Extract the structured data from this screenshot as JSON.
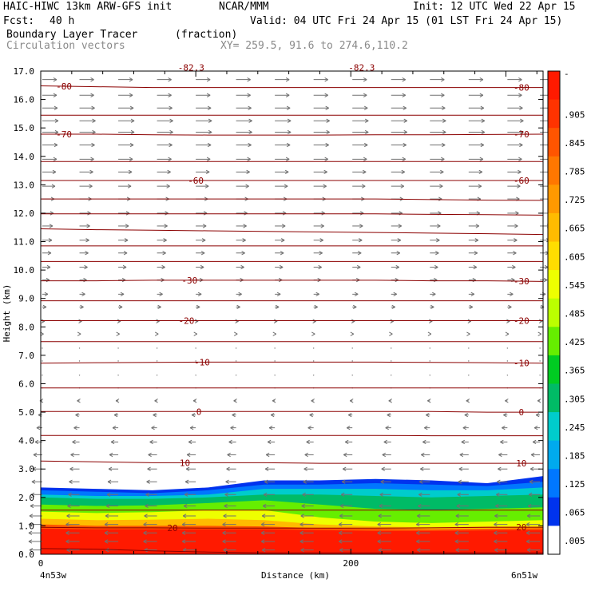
{
  "header": {
    "title_left": "HAIC-HIWC 13km ARW-GFS init",
    "org": "NCAR/MMM",
    "init": "Init: 12 UTC Wed 22 Apr 15",
    "fcst_label": "Fcst:",
    "fcst_value": "40 h",
    "valid": "Valid: 04 UTC Fri 24 Apr 15 (01 LST Fri 24 Apr 15)",
    "field_name": "Boundary Layer Tracer",
    "field_units": "(fraction)",
    "vector_label": "Circulation vectors",
    "xy_label": "XY= 259.5, 91.6 to 274.6,110.2"
  },
  "chart_data": {
    "type": "heatmap",
    "xlabel": "Distance (km)",
    "ylabel": "Height (km)",
    "xlim": [
      0,
      324
    ],
    "ylim": [
      0,
      17
    ],
    "x_ticks": [
      {
        "v": 0,
        "label": "0"
      },
      {
        "v": 200,
        "label": "200"
      }
    ],
    "y_ticks": [
      "0.0",
      "1.0",
      "2.0",
      "3.0",
      "4.0",
      "5.0",
      "6.0",
      "7.0",
      "8.0",
      "9.0",
      "10.0",
      "11.0",
      "12.0",
      "13.0",
      "14.0",
      "15.0",
      "16.0",
      "17.0"
    ],
    "endpoints": {
      "left": "4n53w",
      "right": "6n51w"
    },
    "colorbar": {
      "labels": [
        "-",
        ".905",
        ".845",
        ".785",
        ".725",
        ".665",
        ".605",
        ".545",
        ".485",
        ".425",
        ".365",
        ".305",
        ".245",
        ".185",
        ".125",
        ".065",
        ".005"
      ],
      "colors": [
        "#ff1a00",
        "#ff3300",
        "#ff5500",
        "#ff7700",
        "#ff9900",
        "#ffbb00",
        "#ffdd00",
        "#eeff00",
        "#bbff00",
        "#66ee00",
        "#00cc22",
        "#00bb66",
        "#00cccc",
        "#00aaee",
        "#0077ff",
        "#0033ee",
        "#ffffff"
      ]
    },
    "tracer_layers": [
      {
        "color": "#0033ee",
        "top": [
          2.35,
          2.3,
          2.25,
          2.35,
          2.6,
          2.6,
          2.65,
          2.6,
          2.5,
          2.75
        ]
      },
      {
        "color": "#0077ff",
        "top": [
          2.25,
          2.2,
          2.15,
          2.25,
          2.45,
          2.45,
          2.5,
          2.45,
          2.4,
          2.55
        ]
      },
      {
        "color": "#00cccc",
        "top": [
          2.1,
          2.05,
          2.05,
          2.1,
          2.3,
          2.3,
          2.3,
          2.25,
          2.25,
          2.35
        ]
      },
      {
        "color": "#00bb66",
        "top": [
          2.0,
          1.95,
          1.95,
          2.0,
          2.1,
          2.1,
          2.05,
          2.0,
          2.05,
          2.1
        ]
      },
      {
        "color": "#66ee00",
        "top": [
          1.75,
          1.7,
          1.72,
          1.8,
          1.9,
          1.75,
          1.6,
          1.55,
          1.6,
          1.65
        ]
      },
      {
        "color": "#eeff00",
        "top": [
          1.5,
          1.45,
          1.48,
          1.55,
          1.55,
          1.3,
          1.15,
          1.1,
          1.15,
          1.2
        ]
      },
      {
        "color": "#ffbb00",
        "top": [
          1.25,
          1.2,
          1.22,
          1.25,
          1.2,
          1.05,
          0.98,
          0.95,
          0.98,
          1.0
        ]
      },
      {
        "color": "#ff5500",
        "top": [
          1.05,
          1.0,
          1.0,
          1.0,
          0.98,
          0.92,
          0.9,
          0.88,
          0.9,
          0.92
        ]
      },
      {
        "color": "#ff1a00",
        "top": [
          0.9,
          0.88,
          0.88,
          0.88,
          0.88,
          0.85,
          0.82,
          0.82,
          0.84,
          0.85
        ]
      }
    ],
    "isotherms": [
      {
        "y": [
          0.2,
          0.18,
          0.12,
          0.08,
          0.05,
          0.05,
          0.05,
          0.05,
          0.05,
          0.05
        ]
      },
      {
        "y": [
          0.95,
          0.93,
          0.93,
          0.92,
          0.92,
          0.92,
          0.92,
          0.93,
          0.95,
          0.95
        ],
        "label": "20",
        "lx": 85
      },
      {
        "y": [
          1.55,
          1.55,
          1.55,
          1.55,
          1.55,
          1.55,
          1.55,
          1.55,
          1.55,
          1.55
        ]
      },
      {
        "y": [
          3.28,
          3.25,
          3.22,
          3.22,
          3.22,
          3.2,
          3.2,
          3.2,
          3.2,
          3.2
        ],
        "label": "10",
        "lx": 93
      },
      {
        "y": [
          4.18,
          4.18,
          4.18,
          4.18,
          4.18,
          4.18,
          4.18,
          4.17,
          4.17,
          4.17
        ]
      },
      {
        "y": [
          5.02,
          5.02,
          5.02,
          5.02,
          5.02,
          5.02,
          5.02,
          5.02,
          5.0,
          5.0
        ],
        "label": "0",
        "lx": 102
      },
      {
        "y": [
          5.85,
          5.85,
          5.85,
          5.85,
          5.85,
          5.85,
          5.85,
          5.85,
          5.85,
          5.85
        ]
      },
      {
        "y": [
          6.72,
          6.74,
          6.75,
          6.76,
          6.76,
          6.76,
          6.76,
          6.75,
          6.74,
          6.72
        ],
        "label": "-10",
        "lx": 104
      },
      {
        "y": [
          7.48,
          7.48,
          7.48,
          7.48,
          7.48,
          7.48,
          7.48,
          7.48,
          7.48,
          7.48
        ]
      },
      {
        "y": [
          8.22,
          8.22,
          8.22,
          8.22,
          8.22,
          8.22,
          8.22,
          8.22,
          8.22,
          8.22
        ],
        "label": "-20",
        "lx": 94
      },
      {
        "y": [
          8.92,
          8.92,
          8.92,
          8.92,
          8.92,
          8.92,
          8.92,
          8.92,
          8.92,
          8.92
        ]
      },
      {
        "y": [
          9.62,
          9.62,
          9.64,
          9.64,
          9.64,
          9.64,
          9.64,
          9.62,
          9.62,
          9.6
        ],
        "label": "-30",
        "lx": 96
      },
      {
        "y": [
          10.3,
          10.3,
          10.3,
          10.3,
          10.3,
          10.3,
          10.3,
          10.3,
          10.3,
          10.3
        ]
      },
      {
        "y": [
          10.85,
          10.85,
          10.85,
          10.85,
          10.85,
          10.85,
          10.85,
          10.85,
          10.85,
          10.85
        ]
      },
      {
        "y": [
          11.45,
          11.42,
          11.4,
          11.38,
          11.36,
          11.34,
          11.32,
          11.3,
          11.28,
          11.25
        ]
      },
      {
        "y": [
          11.98,
          11.98,
          11.98,
          11.98,
          11.98,
          11.98,
          11.98,
          11.96,
          11.95,
          11.93
        ]
      },
      {
        "y": [
          12.5,
          12.5,
          12.5,
          12.5,
          12.5,
          12.5,
          12.5,
          12.48,
          12.46,
          12.45
        ]
      },
      {
        "y": [
          13.15,
          13.15,
          13.15,
          13.15,
          13.15,
          13.15,
          13.15,
          13.15,
          13.15,
          13.15
        ],
        "label": "-60",
        "lx": 100
      },
      {
        "y": [
          13.82,
          13.82,
          13.82,
          13.82,
          13.82,
          13.82,
          13.82,
          13.82,
          13.82,
          13.82
        ]
      },
      {
        "y": [
          14.78,
          14.78,
          14.76,
          14.75,
          14.75,
          14.75,
          14.76,
          14.76,
          14.77,
          14.78
        ],
        "label": "-70",
        "lx": 15
      },
      {
        "y": [
          15.45,
          15.45,
          15.45,
          15.45,
          15.45,
          15.45,
          15.45,
          15.45,
          15.45,
          15.45
        ]
      },
      {
        "y": [
          16.48,
          16.45,
          16.42,
          16.42,
          16.42,
          16.42,
          16.42,
          16.42,
          16.42,
          16.42
        ],
        "label": "-80",
        "lx": 15
      }
    ],
    "partial_labels": [
      {
        "x": 97,
        "y": 17.1,
        "text": "-82.3"
      },
      {
        "x": 207,
        "y": 17.1,
        "text": "-82.3"
      }
    ],
    "vector_columns": [
      1,
      25,
      50,
      75,
      100,
      126,
      151,
      176,
      201,
      226,
      251,
      276,
      301,
      322
    ],
    "vector_levels": [
      {
        "y": 16.7,
        "u": 0.9
      },
      {
        "y": 16.15,
        "u": 0.9
      },
      {
        "y": 15.7,
        "u": 0.95
      },
      {
        "y": 15.25,
        "u": 1.0
      },
      {
        "y": 14.85,
        "u": 1.0
      },
      {
        "y": 14.4,
        "u": 0.95
      },
      {
        "y": 13.9,
        "u": 0.9
      },
      {
        "y": 13.45,
        "u": 0.85
      },
      {
        "y": 12.95,
        "u": 0.8
      },
      {
        "y": 12.5,
        "u": 0.75
      },
      {
        "y": 12.0,
        "u": 0.7
      },
      {
        "y": 11.55,
        "u": 0.65
      },
      {
        "y": 11.05,
        "u": 0.6
      },
      {
        "y": 10.6,
        "u": 0.55
      },
      {
        "y": 10.1,
        "u": 0.5
      },
      {
        "y": 9.65,
        "u": 0.45
      },
      {
        "y": 9.15,
        "u": 0.35
      },
      {
        "y": 8.7,
        "u": 0.25
      },
      {
        "y": 8.2,
        "u": 0.15
      },
      {
        "y": 7.75,
        "u": 0.08
      },
      {
        "y": 7.25,
        "u": 0.05
      },
      {
        "y": 6.8,
        "u": 0.05
      },
      {
        "y": 6.3,
        "u": 0.03
      },
      {
        "y": 5.85,
        "u": -0.05
      },
      {
        "y": 5.4,
        "u": -0.15
      },
      {
        "y": 4.9,
        "u": -0.25
      },
      {
        "y": 4.45,
        "u": -0.35
      },
      {
        "y": 3.95,
        "u": -0.45
      },
      {
        "y": 3.5,
        "u": -0.55
      },
      {
        "y": 3.0,
        "u": -0.6
      },
      {
        "y": 2.55,
        "u": -0.65
      },
      {
        "y": 2.1,
        "u": -0.7
      },
      {
        "y": 1.7,
        "u": -0.75
      },
      {
        "y": 1.35,
        "u": -0.8
      },
      {
        "y": 1.05,
        "u": -0.85
      },
      {
        "y": 0.75,
        "u": -0.85
      },
      {
        "y": 0.45,
        "u": -0.85
      },
      {
        "y": 0.15,
        "u": -0.8
      }
    ]
  }
}
